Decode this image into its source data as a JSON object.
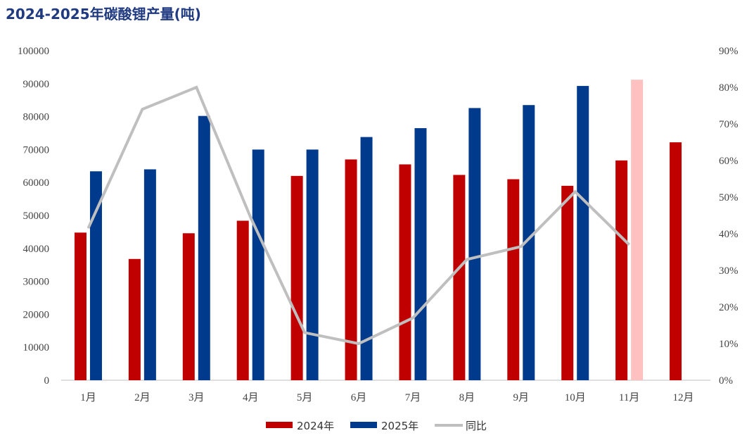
{
  "chart_data": {
    "type": "bar",
    "title": "2024-2025年碳酸锂产量(吨)",
    "categories": [
      "1月",
      "2月",
      "3月",
      "4月",
      "5月",
      "6月",
      "7月",
      "8月",
      "9月",
      "10月",
      "11月",
      "12月"
    ],
    "series": [
      {
        "name": "2024年",
        "kind": "bar",
        "axis": "left",
        "color": "#c00000",
        "values": [
          44800,
          36800,
          44600,
          48400,
          62000,
          67000,
          65500,
          62300,
          61000,
          59000,
          66700,
          72200
        ]
      },
      {
        "name": "2025年",
        "kind": "bar",
        "axis": "left",
        "color": "#003a8c",
        "highlight_color": "#ffc0c0",
        "highlight_index": 10,
        "values": [
          63400,
          64000,
          80200,
          70000,
          70000,
          73800,
          76500,
          82600,
          83500,
          89300,
          91200,
          null
        ]
      },
      {
        "name": "同比",
        "kind": "line",
        "axis": "right",
        "color": "#bfbfbf",
        "values": [
          0.415,
          0.74,
          0.8,
          0.445,
          0.13,
          0.1,
          0.17,
          0.33,
          0.365,
          0.515,
          0.37,
          null
        ]
      }
    ],
    "y_left": {
      "min": 0,
      "max": 100000,
      "step": 10000,
      "ticks": [
        "0",
        "10000",
        "20000",
        "30000",
        "40000",
        "50000",
        "60000",
        "70000",
        "80000",
        "90000",
        "100000"
      ]
    },
    "y_right": {
      "min": 0,
      "max": 0.9,
      "step": 0.1,
      "ticks": [
        "0%",
        "10%",
        "20%",
        "30%",
        "40%",
        "50%",
        "60%",
        "70%",
        "80%",
        "90%"
      ]
    },
    "grid": false,
    "legend_position": "bottom"
  }
}
